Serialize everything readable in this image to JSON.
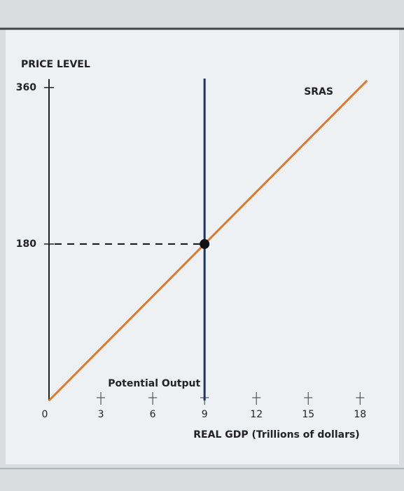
{
  "chart_data": {
    "type": "line",
    "y_label": "PRICE LEVEL",
    "x_label": "REAL GDP (Trillions of dollars)",
    "series": [
      {
        "name": "SRAS",
        "color": "#e0782a",
        "x": [
          0,
          18.4
        ],
        "values": [
          0,
          368
        ]
      }
    ],
    "potential_output": {
      "label": "Potential Output",
      "x": 9,
      "color": "#1d3566"
    },
    "equilibrium": {
      "x": 9,
      "y": 180
    },
    "xlim": [
      0,
      19
    ],
    "ylim": [
      0,
      380
    ],
    "xticks": [
      0,
      3,
      6,
      9,
      12,
      15,
      18
    ],
    "yticks": [
      180,
      360
    ]
  }
}
